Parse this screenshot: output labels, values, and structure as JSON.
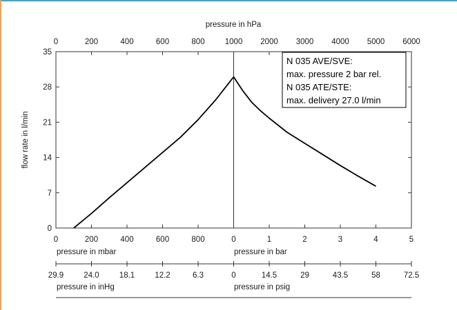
{
  "chart_data": {
    "type": "line",
    "ylabel": "flow rate in l/min",
    "ylim": [
      0,
      35
    ],
    "y_ticks": [
      "0",
      "7",
      "14",
      "21",
      "28",
      "35"
    ],
    "grid": false,
    "top_axis": {
      "label": "pressure in hPa",
      "ticks": [
        "0",
        "200",
        "400",
        "600",
        "800",
        "1000",
        "2000",
        "3000",
        "4000",
        "5000",
        "6000"
      ]
    },
    "bottom_axis_1": {
      "left_label": "pressure in mbar",
      "right_label": "pressure in bar",
      "ticks": [
        "0",
        "200",
        "400",
        "600",
        "800",
        "0",
        "1",
        "2",
        "3",
        "4",
        "5"
      ]
    },
    "bottom_axis_2": {
      "left_label": "pressure in inHg",
      "right_label": "pressure in psig",
      "ticks": [
        "29.9",
        "24.0",
        "18.1",
        "12.2",
        "6.3",
        "0",
        "14.5",
        "29",
        "43.5",
        "58",
        "72.5"
      ]
    },
    "legend": {
      "placement": "top-right",
      "lines": [
        "N 035 AVE/SVE:",
        "max. pressure 2 bar rel.",
        "N 035 ATE/STE:",
        "max. delivery 27.0 l/min"
      ]
    },
    "series": [
      {
        "segment": "vacuum",
        "x_unit": "hPa",
        "x": [
          100,
          200,
          300,
          400,
          500,
          600,
          700,
          800,
          900,
          1000
        ],
        "y": [
          0,
          2.9,
          6.0,
          9.0,
          12.0,
          15.0,
          18.0,
          21.5,
          25.5,
          30.0
        ]
      },
      {
        "segment": "pressure",
        "x_unit": "bar",
        "x": [
          0,
          0.25,
          0.5,
          0.75,
          1.0,
          1.5,
          2.0,
          2.5,
          3.0,
          3.5,
          4.0
        ],
        "y": [
          30.0,
          27.3,
          25.0,
          23.3,
          21.8,
          19.0,
          16.8,
          14.6,
          12.4,
          10.3,
          8.3
        ]
      }
    ]
  }
}
